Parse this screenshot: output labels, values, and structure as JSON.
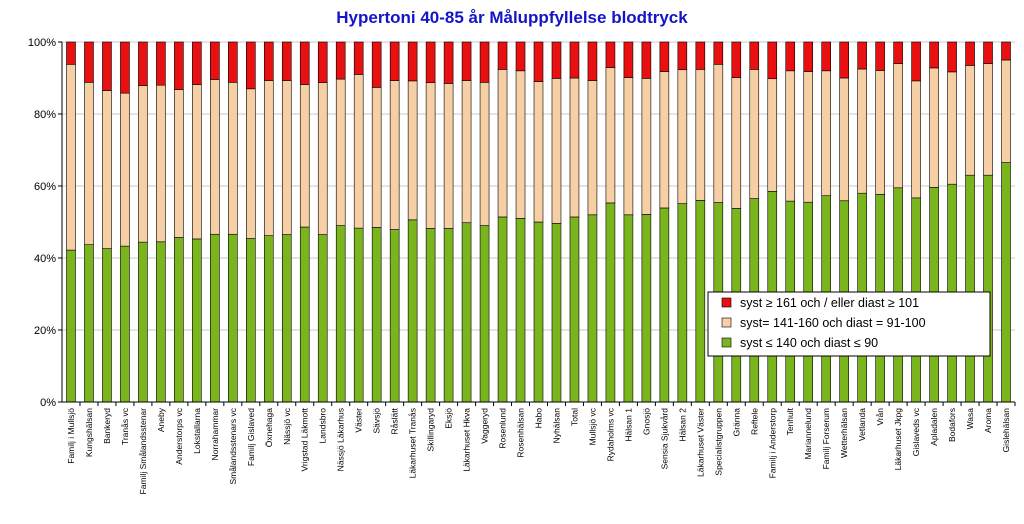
{
  "chart_data": {
    "type": "bar",
    "stacked": true,
    "percent": true,
    "title": "Hypertoni 40-85 år  Måluppfyllelse blodtryck",
    "xlabel": "",
    "ylabel": "",
    "ylim": [
      0,
      100
    ],
    "yticks": [
      "0%",
      "20%",
      "40%",
      "60%",
      "80%",
      "100%"
    ],
    "legend_position": "right",
    "categories": [
      "Familj i Mullsjö",
      "Kungshälsan",
      "Bankeryd",
      "Tranås vc",
      "Familj Smålandsstenar",
      "Aneby",
      "Anderstorps vc",
      "Lokstallarna",
      "Norrahammar",
      "Smålandsstenars vc",
      "Familj Gislaved",
      "Öxnehaga",
      "Nässjö vc",
      "Vrigstad Läkmott",
      "Landsbro",
      "Nässjö Läkarhus",
      "Väster",
      "Sävsjö",
      "Råslätt",
      "Läkarhuset Tranås",
      "Skillingaryd",
      "Eksjö",
      "Läkarhuset Hkva",
      "Vaggeryd",
      "Rosenlund",
      "Rosenhälsan",
      "Habo",
      "Nyhälsan",
      "Total",
      "Mullsjö vc",
      "Rydaholms vc",
      "Hälsan 1",
      "Gnosjö",
      "Sensia Sjukvård",
      "Hälsan 2",
      "Läkarhuset Väster",
      "Specialistgruppen",
      "Gränna",
      "Reftele",
      "Familj i Anderstorp",
      "Tenhult",
      "Mariannelund",
      "Familj Forserum",
      "Wetterhälsan",
      "Vetlanda",
      "Vrån",
      "Läkarhuset Jkpg",
      "Gislaveds vc",
      "Apladalen",
      "Bodafors",
      "Wasa",
      "Aroma",
      "Gislehälsan"
    ],
    "series": [
      {
        "name": "syst  ≤ 140 och diast  ≤ 90",
        "color": "#7ab51d",
        "values": [
          42.2,
          43.7,
          42.6,
          43.3,
          44.4,
          44.5,
          45.7,
          45.3,
          46.6,
          46.6,
          45.4,
          46.2,
          46.5,
          48.6,
          46.5,
          49.0,
          48.3,
          48.5,
          47.9,
          50.6,
          48.2,
          48.2,
          49.8,
          49.0,
          51.4,
          51.0,
          50.0,
          49.6,
          51.4,
          52.0,
          55.3,
          52.0,
          52.1,
          53.9,
          55.1,
          56.0,
          55.4,
          53.8,
          56.5,
          58.5,
          55.8,
          55.5,
          57.3,
          55.9,
          58.0,
          57.7,
          59.5,
          56.7,
          59.6,
          60.5,
          63.0,
          63.0,
          66.5
        ]
      },
      {
        "name": "syst= 141-160 och diast = 91-100",
        "color": "#f7cfa4",
        "values": [
          51.6,
          45.1,
          43.9,
          42.5,
          43.5,
          43.5,
          41.1,
          42.9,
          43.0,
          42.2,
          41.6,
          43.1,
          42.8,
          39.6,
          42.2,
          40.7,
          42.7,
          38.9,
          41.4,
          38.6,
          40.5,
          40.3,
          39.5,
          39.8,
          41.0,
          41.0,
          39.0,
          40.3,
          38.6,
          37.3,
          37.6,
          38.1,
          37.8,
          37.9,
          37.2,
          36.4,
          38.4,
          36.3,
          35.9,
          31.3,
          36.2,
          36.3,
          34.7,
          34.1,
          34.5,
          34.4,
          34.5,
          32.5,
          33.2,
          31.2,
          30.5,
          31.0,
          28.5
        ]
      },
      {
        "name": "syst ≥ 161 och / eller diast ≥ 101",
        "color": "#e81010",
        "values": [
          6.2,
          11.2,
          13.5,
          14.2,
          12.1,
          12.0,
          13.2,
          11.8,
          10.4,
          11.2,
          13.0,
          10.7,
          10.7,
          11.8,
          11.3,
          10.3,
          9.0,
          12.6,
          10.7,
          10.8,
          11.3,
          11.5,
          10.7,
          11.2,
          7.6,
          8.0,
          11.0,
          10.1,
          10.0,
          10.7,
          7.1,
          9.9,
          10.1,
          8.2,
          7.7,
          7.6,
          6.2,
          9.9,
          7.6,
          10.2,
          8.0,
          8.2,
          8.0,
          10.0,
          7.5,
          7.9,
          6.0,
          10.8,
          7.2,
          8.3,
          6.5,
          6.0,
          5.0
        ]
      }
    ],
    "legend": [
      "syst ≥ 161 och / eller diast ≥ 101",
      "syst= 141-160 och diast = 91-100",
      "syst  ≤ 140 och diast  ≤ 90"
    ]
  }
}
